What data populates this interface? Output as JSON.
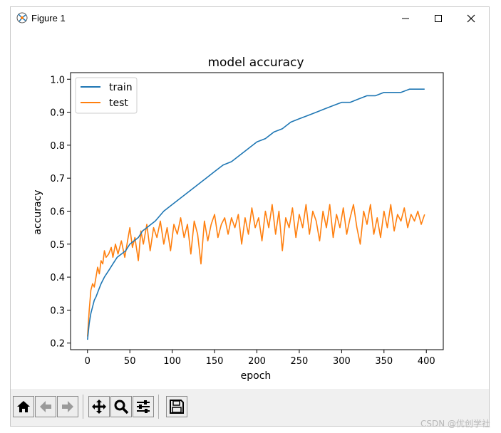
{
  "window": {
    "title": "Figure 1"
  },
  "icons": {
    "app": "matplotlib-figure-icon",
    "minimize": "minimize-icon",
    "maximize": "maximize-icon",
    "close": "close-icon",
    "home": "home-icon",
    "back": "arrow-left-icon",
    "forward": "arrow-right-icon",
    "pan": "move-arrows-icon",
    "zoom": "magnifier-icon",
    "configure": "sliders-icon",
    "save": "floppy-disk-icon"
  },
  "watermark": "CSDN @优创学社",
  "chart_data": {
    "type": "line",
    "title": "model accuracy",
    "xlabel": "epoch",
    "ylabel": "accuracy",
    "xlim": [
      -20,
      420
    ],
    "ylim": [
      0.18,
      1.02
    ],
    "xticks": [
      0,
      50,
      100,
      150,
      200,
      250,
      300,
      350,
      400
    ],
    "yticks": [
      0.2,
      0.3,
      0.4,
      0.5,
      0.6,
      0.7,
      0.8,
      0.9,
      1.0
    ],
    "xtick_labels": [
      "0",
      "50",
      "100",
      "150",
      "200",
      "250",
      "300",
      "350",
      "400"
    ],
    "ytick_labels": [
      "0.2",
      "0.3",
      "0.4",
      "0.5",
      "0.6",
      "0.7",
      "0.8",
      "0.9",
      "1.0"
    ],
    "legend_position": "top-left",
    "grid": false,
    "series": [
      {
        "name": "train",
        "color": "#1f77b4",
        "x": [
          0,
          2,
          4,
          6,
          8,
          10,
          13,
          16,
          20,
          25,
          30,
          35,
          40,
          45,
          50,
          55,
          60,
          65,
          70,
          75,
          80,
          90,
          100,
          110,
          120,
          130,
          140,
          150,
          160,
          170,
          180,
          190,
          200,
          210,
          220,
          230,
          240,
          250,
          260,
          270,
          280,
          290,
          300,
          310,
          320,
          330,
          340,
          350,
          360,
          370,
          380,
          390,
          398
        ],
        "y": [
          0.21,
          0.26,
          0.29,
          0.31,
          0.33,
          0.34,
          0.36,
          0.38,
          0.4,
          0.42,
          0.44,
          0.46,
          0.47,
          0.48,
          0.5,
          0.51,
          0.52,
          0.54,
          0.55,
          0.56,
          0.57,
          0.6,
          0.62,
          0.64,
          0.66,
          0.68,
          0.7,
          0.72,
          0.74,
          0.75,
          0.77,
          0.79,
          0.81,
          0.82,
          0.84,
          0.85,
          0.87,
          0.88,
          0.89,
          0.9,
          0.91,
          0.92,
          0.93,
          0.93,
          0.94,
          0.95,
          0.95,
          0.96,
          0.96,
          0.96,
          0.97,
          0.97,
          0.97
        ]
      },
      {
        "name": "test",
        "color": "#ff7f0e",
        "x": [
          0,
          2,
          4,
          6,
          8,
          10,
          12,
          14,
          16,
          18,
          20,
          22,
          25,
          28,
          30,
          33,
          36,
          40,
          44,
          48,
          50,
          53,
          56,
          60,
          63,
          66,
          70,
          74,
          78,
          82,
          86,
          90,
          94,
          98,
          102,
          106,
          110,
          114,
          118,
          122,
          126,
          130,
          134,
          138,
          142,
          146,
          150,
          154,
          158,
          162,
          166,
          170,
          174,
          178,
          182,
          186,
          190,
          194,
          198,
          202,
          206,
          210,
          214,
          218,
          222,
          226,
          230,
          234,
          238,
          242,
          246,
          250,
          254,
          258,
          262,
          266,
          270,
          274,
          278,
          282,
          286,
          290,
          294,
          298,
          302,
          306,
          310,
          314,
          318,
          322,
          326,
          330,
          334,
          338,
          342,
          346,
          350,
          354,
          358,
          362,
          366,
          370,
          374,
          378,
          382,
          386,
          390,
          394,
          398
        ],
        "y": [
          0.22,
          0.3,
          0.36,
          0.38,
          0.37,
          0.4,
          0.43,
          0.41,
          0.45,
          0.44,
          0.48,
          0.46,
          0.47,
          0.49,
          0.46,
          0.5,
          0.47,
          0.51,
          0.46,
          0.52,
          0.55,
          0.49,
          0.52,
          0.45,
          0.54,
          0.5,
          0.56,
          0.48,
          0.55,
          0.52,
          0.57,
          0.5,
          0.55,
          0.48,
          0.56,
          0.53,
          0.58,
          0.52,
          0.56,
          0.47,
          0.57,
          0.53,
          0.44,
          0.57,
          0.51,
          0.56,
          0.59,
          0.52,
          0.56,
          0.58,
          0.53,
          0.58,
          0.55,
          0.59,
          0.5,
          0.58,
          0.53,
          0.61,
          0.55,
          0.58,
          0.51,
          0.6,
          0.55,
          0.62,
          0.53,
          0.6,
          0.48,
          0.58,
          0.55,
          0.61,
          0.52,
          0.59,
          0.55,
          0.62,
          0.53,
          0.6,
          0.57,
          0.51,
          0.6,
          0.55,
          0.62,
          0.52,
          0.59,
          0.55,
          0.61,
          0.53,
          0.58,
          0.62,
          0.55,
          0.5,
          0.6,
          0.56,
          0.62,
          0.53,
          0.58,
          0.52,
          0.6,
          0.55,
          0.62,
          0.54,
          0.59,
          0.57,
          0.61,
          0.55,
          0.59,
          0.57,
          0.6,
          0.56,
          0.59
        ]
      }
    ]
  }
}
